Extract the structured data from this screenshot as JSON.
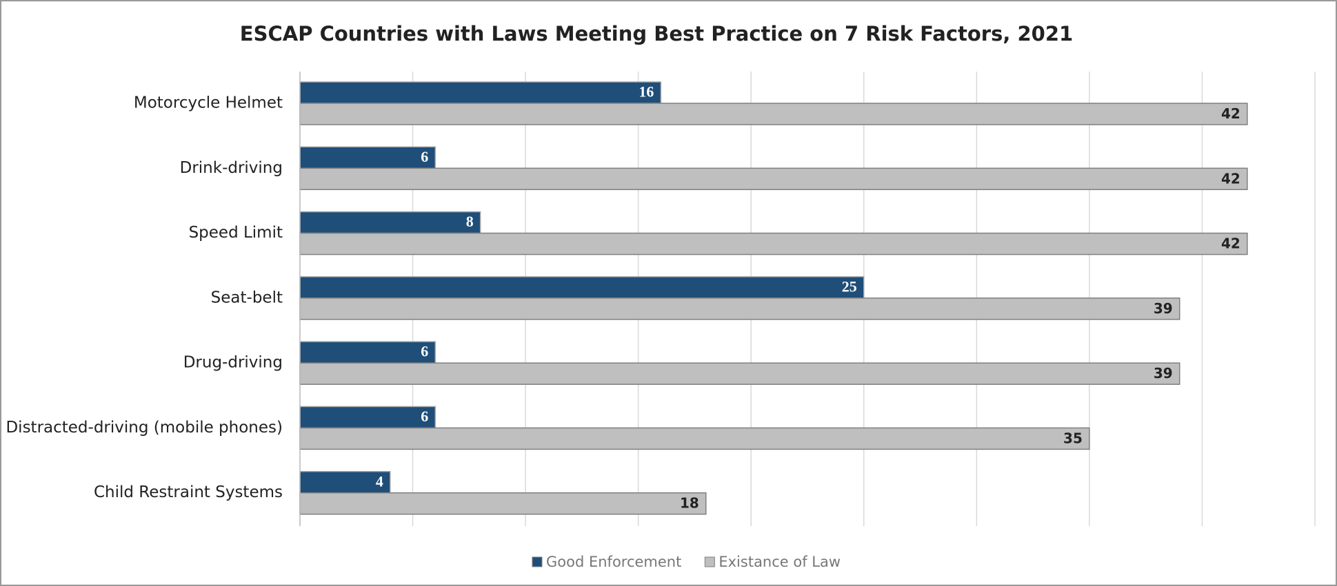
{
  "chart_data": {
    "type": "bar",
    "orientation": "horizontal",
    "title": "ESCAP Countries with Laws Meeting Best Practice on 7 Risk Factors, 2021",
    "categories": [
      "Motorcycle Helmet",
      "Drink-driving",
      "Speed Limit",
      "Seat-belt",
      "Drug-driving",
      "Distracted-driving (mobile phones)",
      "Child Restraint Systems"
    ],
    "series": [
      {
        "name": "Good Enforcement",
        "color": "#1f4e79",
        "values": [
          16,
          6,
          8,
          25,
          6,
          6,
          4
        ]
      },
      {
        "name": "Existance of Law",
        "color": "#bfbfbf",
        "values": [
          42,
          42,
          42,
          39,
          39,
          35,
          18
        ]
      }
    ],
    "xlim": [
      0,
      45
    ],
    "xticks": [
      0,
      5,
      10,
      15,
      20,
      25,
      30,
      35,
      40,
      45
    ],
    "grid": true,
    "legend": "bottom"
  }
}
